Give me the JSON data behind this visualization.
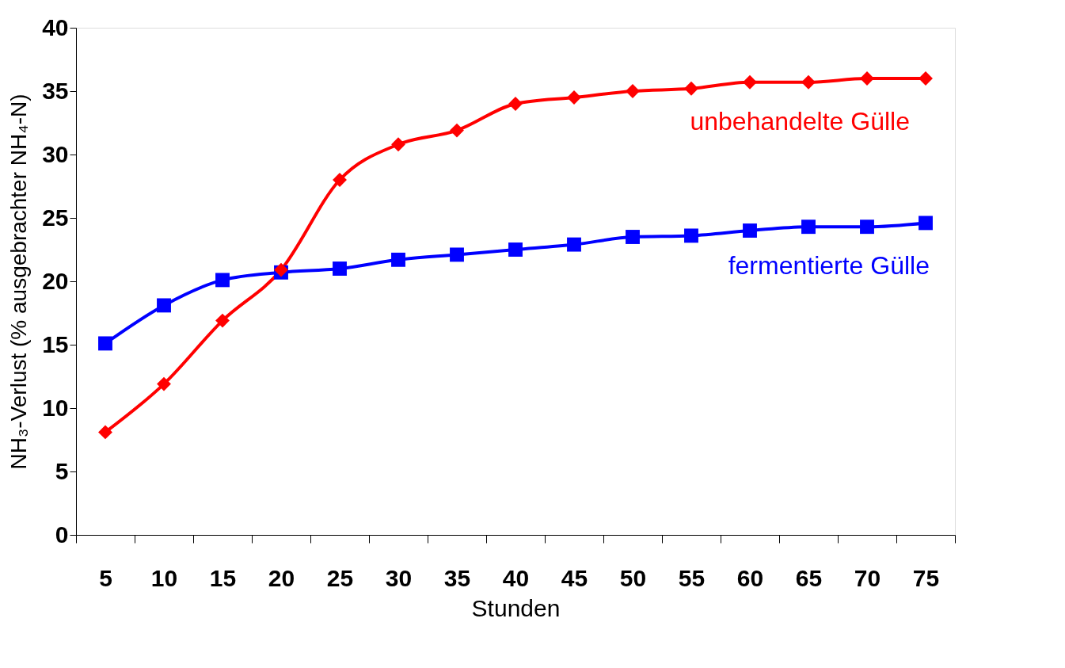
{
  "chart_data": {
    "type": "line",
    "xlabel": "Stunden",
    "ylabel": "NH₃-Verlust (% ausgebrachter NH₄-N)",
    "categories": [
      "5",
      "10",
      "15",
      "20",
      "25",
      "30",
      "35",
      "40",
      "45",
      "50",
      "55",
      "60",
      "65",
      "70",
      "75"
    ],
    "series": [
      {
        "name": "unbehandelte Gülle",
        "color": "#ff0000",
        "marker": "diamond",
        "values": [
          8.1,
          11.9,
          16.9,
          20.9,
          28.0,
          30.8,
          31.9,
          34.0,
          34.5,
          35.0,
          35.2,
          35.7,
          35.7,
          36.0,
          36.0
        ]
      },
      {
        "name": "fermentierte Gülle",
        "color": "#0000ff",
        "marker": "square",
        "values": [
          15.1,
          18.1,
          20.1,
          20.7,
          21.0,
          21.7,
          22.1,
          22.5,
          22.9,
          23.5,
          23.6,
          24.0,
          24.3,
          24.3,
          24.6
        ]
      }
    ],
    "ylim": [
      0,
      40
    ],
    "yticks": [
      0,
      5,
      10,
      15,
      20,
      25,
      30,
      35,
      40
    ],
    "grid": false,
    "legend": false,
    "line_style": "solid"
  }
}
